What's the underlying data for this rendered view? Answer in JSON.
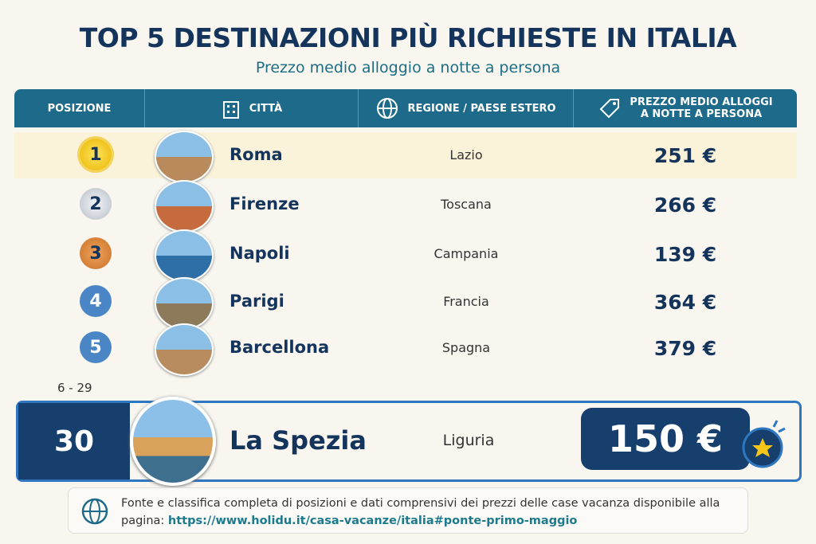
{
  "header": {
    "title": "TOP 5 DESTINAZIONI PIÙ RICHIESTE IN ITALIA",
    "subtitle": "Prezzo medio alloggio a notte a persona"
  },
  "table": {
    "columns": [
      "POSIZIONE",
      "CITTÀ",
      "REGIONE / PAESE ESTERO",
      "PREZZO MEDIO ALLOGGI A NOTTE A PERSONA"
    ],
    "rows": [
      [
        "1",
        "Roma",
        "Lazio",
        "251 €"
      ],
      [
        "2",
        "Firenze",
        "Toscana",
        "266 €"
      ],
      [
        "3",
        "Napoli",
        "Campania",
        "139 €"
      ],
      [
        "4",
        "Parigi",
        "Francia",
        "364 €"
      ],
      [
        "5",
        "Barcellona",
        "Spagna",
        "379 €"
      ]
    ],
    "gap_label": "6 - 29",
    "highlight": [
      "30",
      "La Spezia",
      "Liguria",
      "150 €"
    ]
  },
  "footer": {
    "text": "Fonte e classifica completa di posizioni e dati comprensivi dei prezzi delle case vacanza disponibile alla pagina:",
    "link": "https://www.holidu.it/casa-vacanze/italia#ponte-primo-maggio"
  }
}
